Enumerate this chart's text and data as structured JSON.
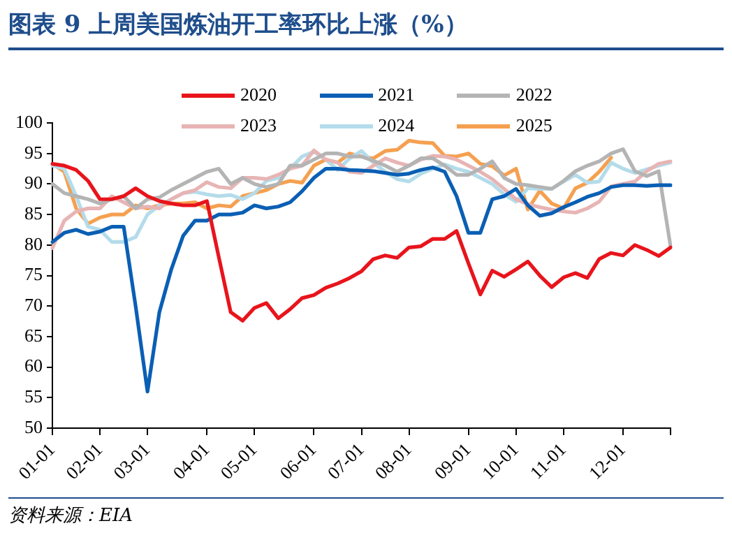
{
  "chart_data": {
    "type": "line",
    "title": "图表 9 上周美国炼油开工率环比上涨（%）",
    "annotations": [
      "资料来源：EIA"
    ],
    "categories": [
      "01-01",
      null,
      null,
      null,
      "02-01",
      null,
      null,
      null,
      "03-01",
      null,
      null,
      null,
      null,
      "04-01",
      null,
      null,
      null,
      "05-01",
      null,
      null,
      null,
      null,
      "06-01",
      null,
      null,
      null,
      "07-01",
      null,
      null,
      null,
      "08-01",
      null,
      null,
      null,
      null,
      "09-01",
      null,
      null,
      null,
      "10-01",
      null,
      null,
      null,
      "11-01",
      null,
      null,
      null,
      null,
      "12-01",
      null,
      null,
      null,
      null
    ],
    "ylim": [
      50,
      100
    ],
    "yticks": [
      50,
      55,
      60,
      65,
      70,
      75,
      80,
      85,
      90,
      95,
      100
    ],
    "grid": false,
    "legend": "top",
    "marker": "none",
    "line_style": "solid",
    "series": [
      {
        "name": "2020",
        "color": "#e8141c",
        "values": [
          93.3,
          93,
          92.3,
          90.5,
          87.5,
          87.5,
          88,
          89.3,
          88,
          87.2,
          86.8,
          86.5,
          86.5,
          87.2,
          78,
          69,
          67.6,
          69.7,
          70.5,
          68,
          69.5,
          71.3,
          71.8,
          73,
          73.7,
          74.6,
          75.7,
          77.7,
          78.3,
          77.9,
          79.6,
          79.8,
          81,
          81,
          82.3,
          77,
          71.9,
          75.8,
          74.8,
          76,
          77.3,
          75,
          73.1,
          74.7,
          75.4,
          74.6,
          77.7,
          78.7,
          78.3,
          80,
          79.2,
          78.2,
          79.6
        ]
      },
      {
        "name": "2021",
        "color": "#0a5fb4",
        "values": [
          80.5,
          82,
          82.5,
          81.8,
          82.2,
          83,
          83,
          70,
          56,
          69,
          76,
          81.5,
          84,
          84,
          85,
          85,
          85.3,
          86.5,
          86,
          86.3,
          87,
          88.8,
          91,
          92.5,
          92.5,
          92.3,
          92.2,
          92.1,
          91.8,
          91.5,
          91.7,
          92.3,
          92.7,
          92,
          88,
          82,
          82,
          87.5,
          88,
          89.2,
          86.5,
          84.8,
          85.2,
          86.2,
          87,
          87.9,
          88.5,
          89.5,
          89.8,
          89.8,
          89.7,
          89.8,
          89.8
        ]
      },
      {
        "name": "2022",
        "color": "#b4b4b4",
        "values": [
          90,
          88.5,
          88,
          87.5,
          86.8,
          87.5,
          88,
          86,
          87.5,
          87.8,
          89,
          90,
          91,
          92,
          92.5,
          90,
          91,
          90,
          89.5,
          90,
          93,
          93,
          94,
          95,
          95,
          94.5,
          94.5,
          93.8,
          93,
          92,
          93,
          94.2,
          94.2,
          93,
          91.5,
          91.5,
          92.5,
          93.7,
          91,
          90,
          89.8,
          89.5,
          89.2,
          90.5,
          92.1,
          93,
          93.7,
          95,
          95.7,
          92.1,
          91.3,
          92.1,
          79.8
        ]
      },
      {
        "name": "2023",
        "color": "#e8b4b4",
        "values": [
          79.5,
          84,
          85.5,
          86,
          86,
          88,
          87,
          86,
          86.3,
          86,
          87.5,
          88.5,
          89,
          90.3,
          89.5,
          89.3,
          91,
          91,
          90.8,
          91.5,
          92.5,
          93,
          95.5,
          94,
          93.5,
          92,
          91.8,
          93,
          94.2,
          93.5,
          93,
          94,
          94.6,
          94.5,
          94,
          93,
          92,
          90.8,
          89.2,
          87.5,
          86.7,
          86.2,
          85.8,
          85.5,
          85.3,
          86,
          87.1,
          89.6,
          90,
          90.4,
          92.1,
          93.3,
          93.7
        ]
      },
      {
        "name": "2024",
        "color": "#b4dcea",
        "values": [
          93,
          92.5,
          88,
          83,
          82.5,
          80.5,
          80.5,
          81.3,
          85,
          86.5,
          87.5,
          88.5,
          88.7,
          88.3,
          88,
          88.2,
          87.5,
          88.5,
          90.5,
          91,
          92.5,
          94.5,
          95.3,
          94,
          92.3,
          94.2,
          95.4,
          93.5,
          92,
          90.8,
          90.4,
          91.7,
          92.5,
          93.2,
          92.5,
          92,
          91,
          90,
          88.3,
          87.1,
          89.3,
          89.2,
          89.2,
          90.4,
          91.5,
          90.2,
          90.4,
          93.5,
          92.5,
          91.8,
          92.4,
          93,
          93.5
        ]
      },
      {
        "name": "2025",
        "color": "#f5a050",
        "values": [
          93.3,
          92,
          86,
          83.5,
          84.5,
          85,
          85,
          86.5,
          86,
          86.5,
          86.8,
          86.8,
          87,
          86,
          86.5,
          86.3,
          88,
          88.5,
          89,
          90,
          90.5,
          90.2,
          93,
          94,
          93.5,
          95,
          94.5,
          94.2,
          95.4,
          95.6,
          97.1,
          96.8,
          96.7,
          94.6,
          94.5,
          95,
          93.3,
          92.9,
          91.4,
          92.5,
          85.8,
          88.9,
          86.8,
          86,
          89.3,
          90.2,
          92,
          94.3,
          null,
          null,
          null,
          null,
          null
        ]
      }
    ]
  }
}
